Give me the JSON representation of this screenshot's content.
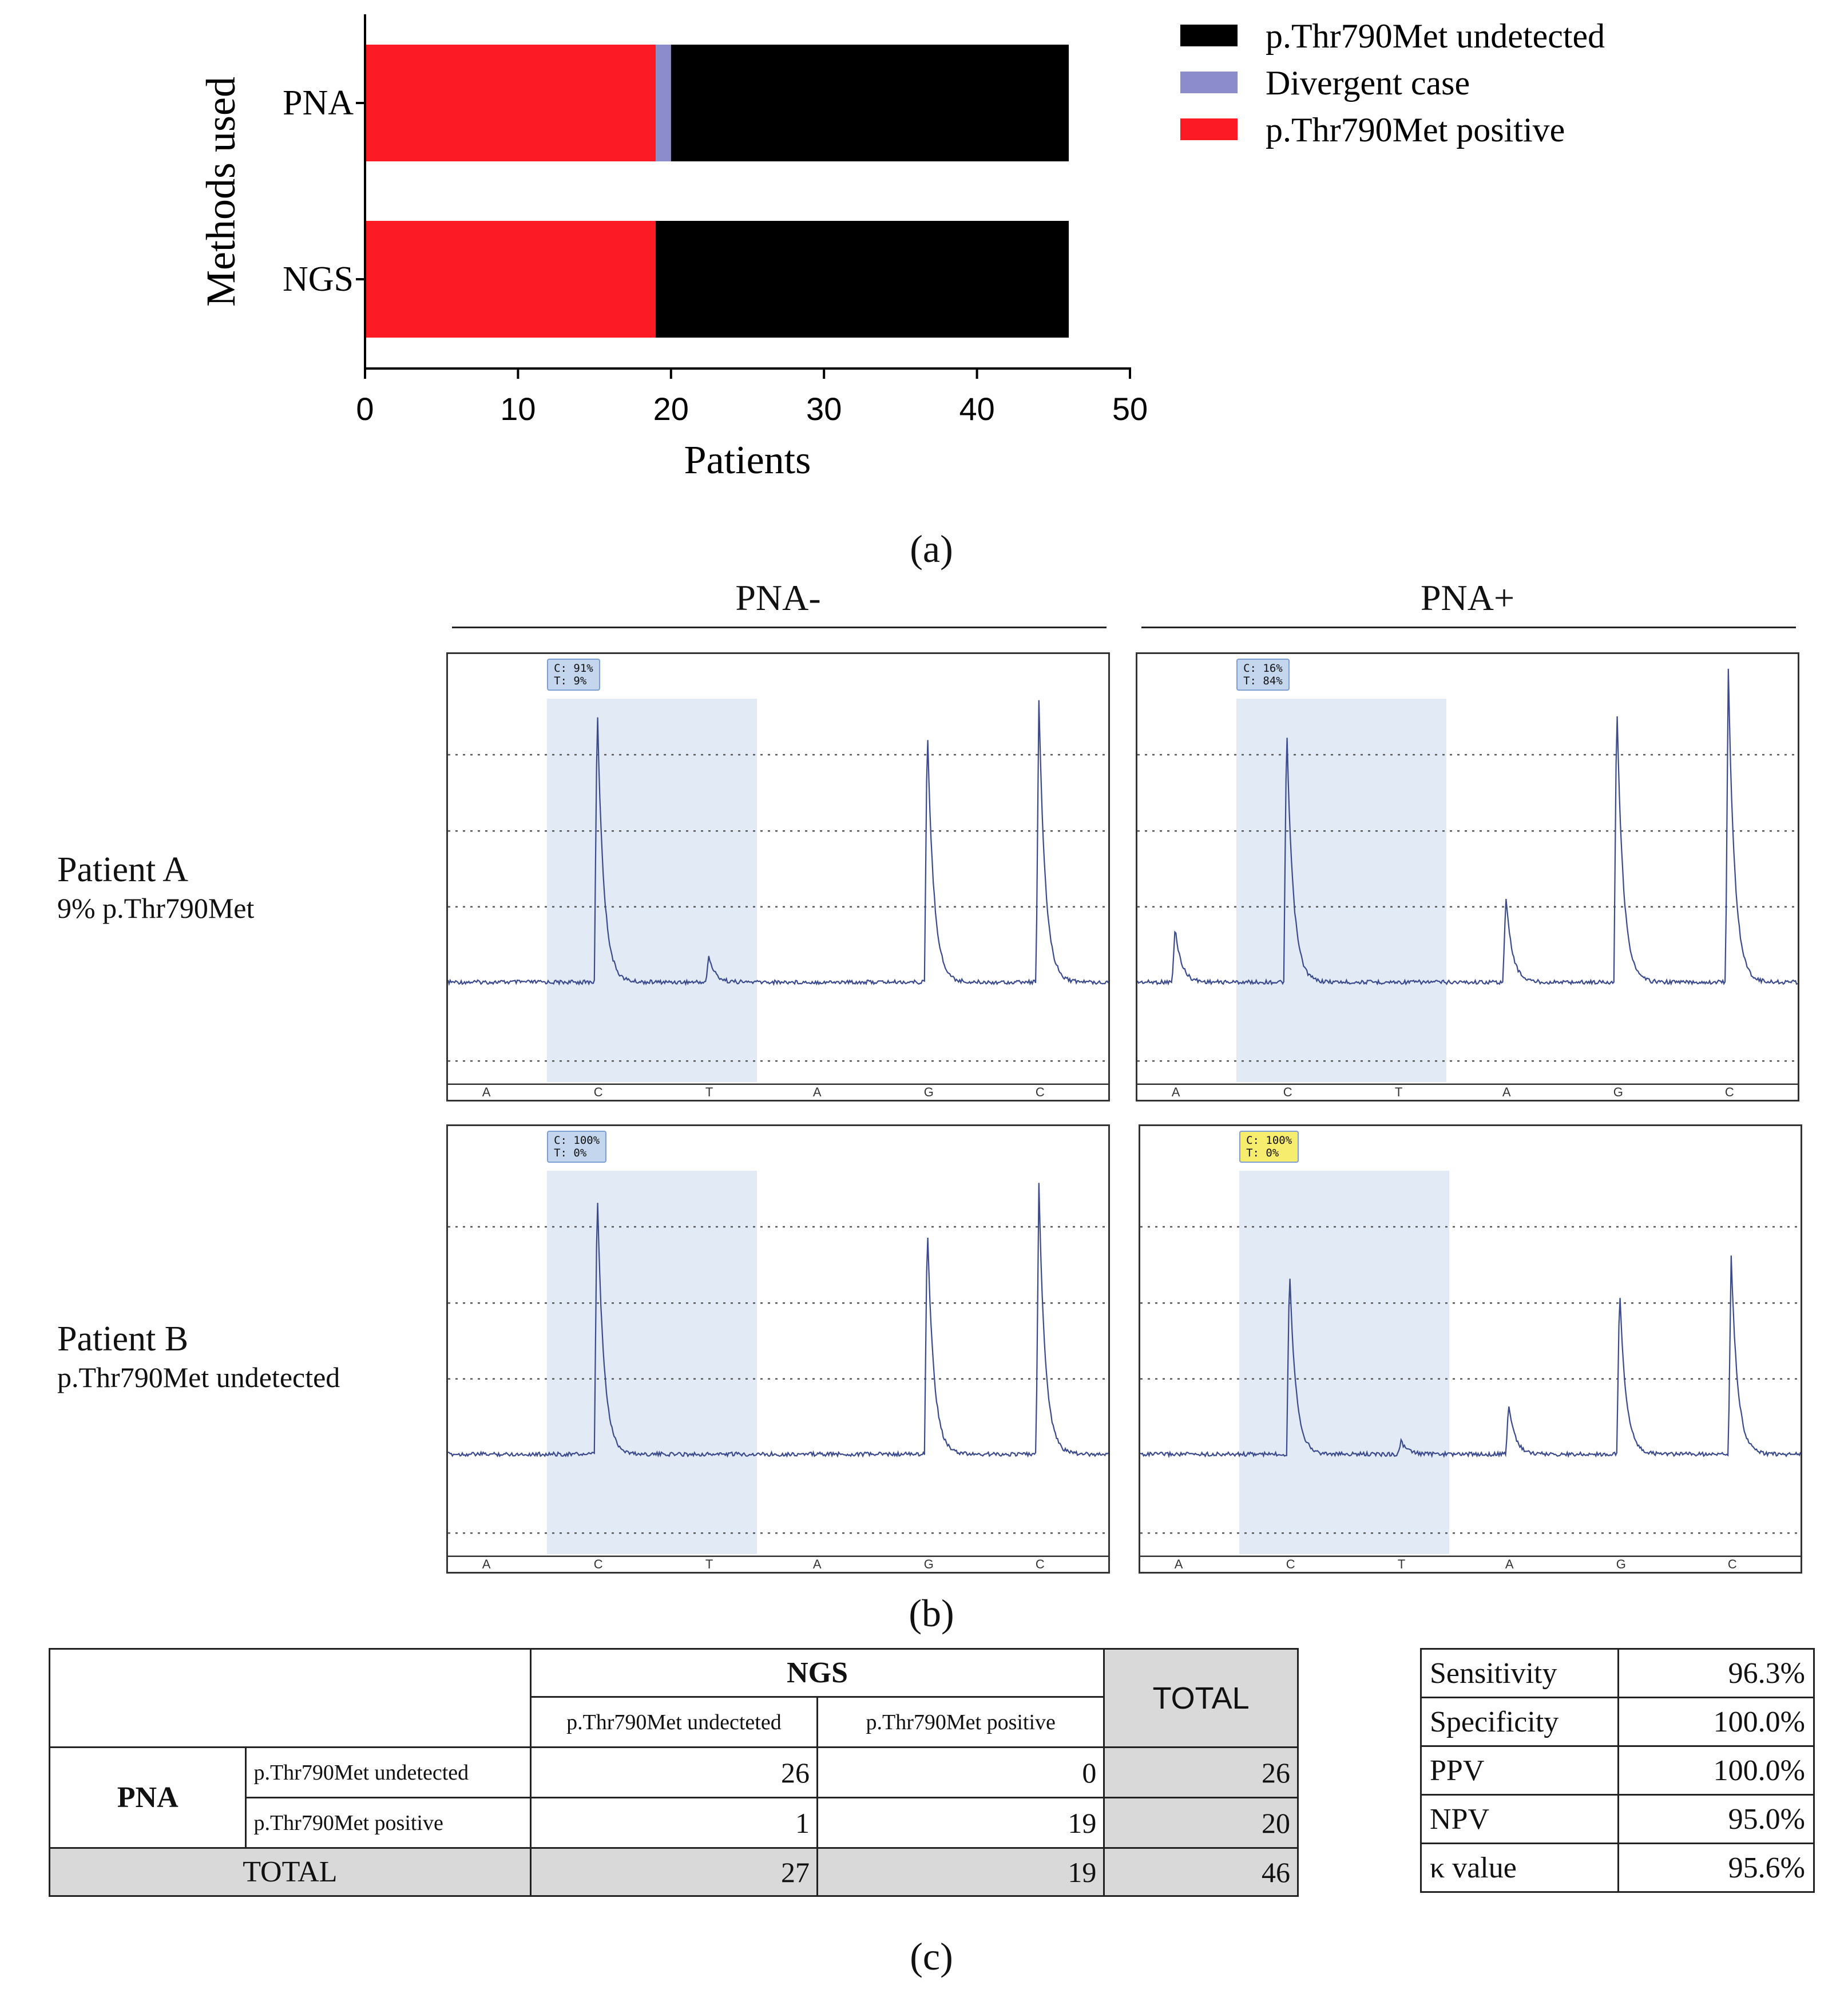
{
  "chart_data": {
    "type": "bar",
    "orientation": "horizontal",
    "stacked": true,
    "categories": [
      "PNA",
      "NGS"
    ],
    "series": [
      {
        "name": "p.Thr790Met positive",
        "values": [
          19,
          19
        ],
        "color": "#fc1b24"
      },
      {
        "name": "Divergent case",
        "values": [
          1,
          0
        ],
        "color": "#8c8ccc"
      },
      {
        "name": "p.Thr790Met undetected",
        "values": [
          26,
          27
        ],
        "color": "#000000"
      }
    ],
    "legend_order": [
      "p.Thr790Met undetected",
      "Divergent case",
      "p.Thr790Met positive"
    ],
    "xlabel": "Patients",
    "ylabel": "Methods used",
    "xlim": [
      0,
      50
    ],
    "xticks": [
      0,
      10,
      20,
      30,
      40,
      50
    ],
    "legend_position": "top-right"
  },
  "panels": {
    "a": "(a)",
    "b": "(b)",
    "c": "(c)"
  },
  "pyro": {
    "col_heads": [
      "PNA-",
      "PNA+"
    ],
    "rows": [
      {
        "name": "Patient A",
        "sub": "9% p.Thr790Met"
      },
      {
        "name": "Patient B",
        "sub": "p.Thr790Met undetected"
      }
    ],
    "bases": [
      "A",
      "C",
      "T",
      "A",
      "G",
      "C"
    ],
    "badges": [
      {
        "c": "C: 91%",
        "t": "T: 9%",
        "color": "#c3d6ee"
      },
      {
        "c": "C: 16%",
        "t": "T: 84%",
        "color": "#c3d6ee"
      },
      {
        "c": "C: 100%",
        "t": "T: 0%",
        "color": "#c3d6ee"
      },
      {
        "c": "C: 100%",
        "t": "T: 0%",
        "color": "#f6ec6e"
      }
    ],
    "peaks": [
      [
        0,
        0.88,
        0.08,
        0,
        0.81,
        0.88
      ],
      [
        0.17,
        0.81,
        0,
        0.27,
        0.89,
        0.97
      ],
      [
        0,
        0.84,
        0,
        0,
        0.73,
        0.84
      ],
      [
        0,
        0.59,
        0.04,
        0.16,
        0.52,
        0.62
      ]
    ]
  },
  "contingency": {
    "col_group": "NGS",
    "total_label": "TOTAL",
    "col_labels": [
      "p.Thr790Met undecteted",
      "p.Thr790Met positive"
    ],
    "row_group": "PNA",
    "row_labels": [
      "p.Thr790Met undetected",
      "p.Thr790Met positive"
    ],
    "cells": [
      [
        26,
        0
      ],
      [
        1,
        19
      ]
    ],
    "row_totals": [
      26,
      20
    ],
    "col_totals": [
      27,
      19
    ],
    "grand_total": 46
  },
  "stats": [
    {
      "label": "Sensitivity",
      "value": "96.3%"
    },
    {
      "label": "Specificity",
      "value": "100.0%"
    },
    {
      "label": "PPV",
      "value": "100.0%"
    },
    {
      "label": "NPV",
      "value": "95.0%"
    },
    {
      "label": "κ value",
      "value": "95.6%"
    }
  ]
}
